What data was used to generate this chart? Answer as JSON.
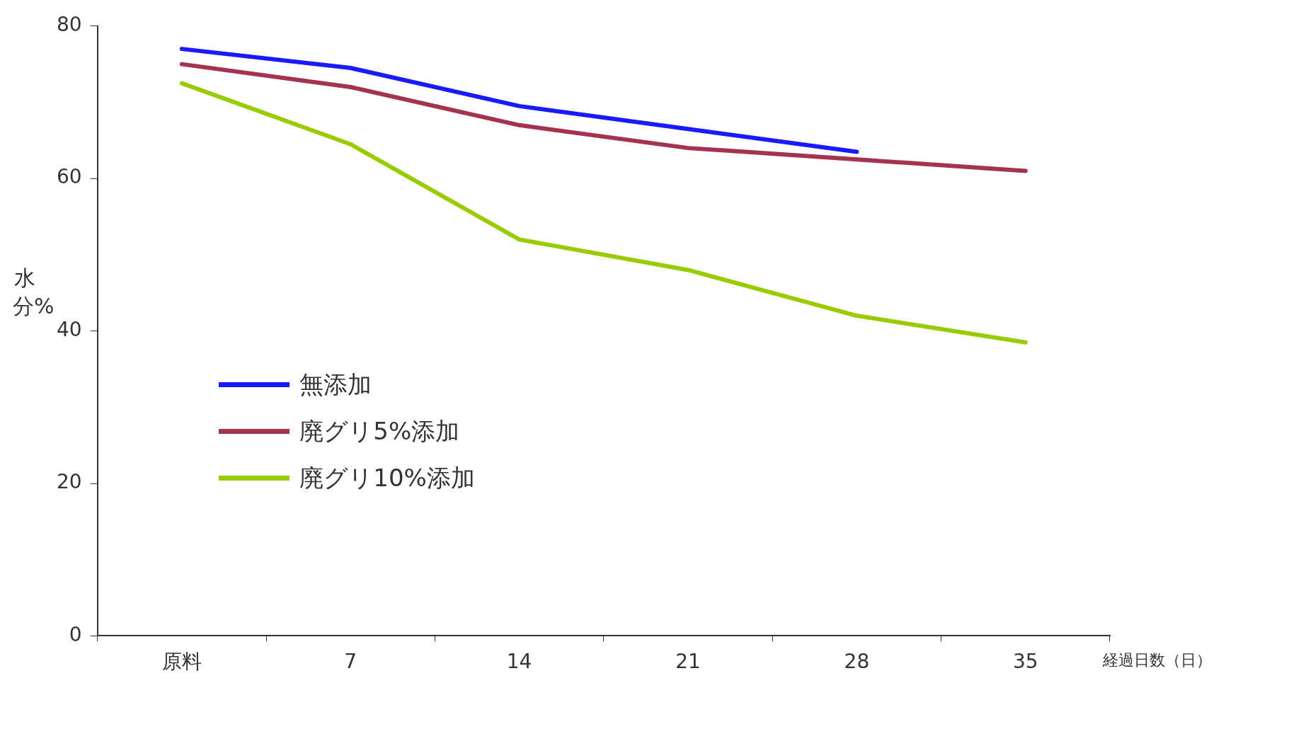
{
  "chart_data": {
    "type": "line",
    "xlabel": "経過日数（日）",
    "ylabel": "水分%",
    "categories": [
      "原料",
      "7",
      "14",
      "21",
      "28",
      "35"
    ],
    "ylim": [
      0,
      80
    ],
    "yticks": [
      0,
      20,
      40,
      60,
      80
    ],
    "grid": false,
    "legend": "left",
    "marker": "none",
    "line_style": "solid",
    "series": [
      {
        "name": "無添加",
        "color": "#1a1aff",
        "values": [
          77,
          74.5,
          69.5,
          66.5,
          63.5,
          null
        ]
      },
      {
        "name": "廃グリ5%添加",
        "color": "#a3334f",
        "values": [
          75,
          72,
          67,
          64,
          62.5,
          61
        ]
      },
      {
        "name": "廃グリ10%添加",
        "color": "#99cc00",
        "values": [
          72.5,
          64.5,
          52,
          48,
          42,
          38.5
        ]
      }
    ]
  }
}
